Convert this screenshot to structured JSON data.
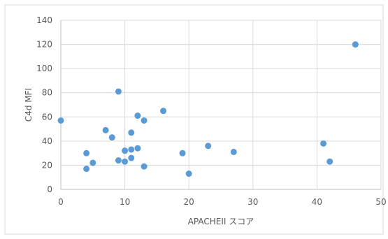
{
  "chart_data": {
    "type": "scatter",
    "title": "",
    "xlabel": "APACHEII スコア",
    "ylabel": "C4d MFI",
    "xlim": [
      0,
      50
    ],
    "ylim": [
      0,
      140
    ],
    "x_ticks": [
      0,
      10,
      20,
      30,
      40,
      50
    ],
    "y_ticks": [
      0,
      20,
      40,
      60,
      80,
      100,
      120,
      140
    ],
    "grid": true,
    "legend": "none",
    "point_color": "#5b9bd5",
    "series": [
      {
        "points": [
          {
            "x": 0,
            "y": 57
          },
          {
            "x": 4,
            "y": 30
          },
          {
            "x": 4,
            "y": 17
          },
          {
            "x": 5,
            "y": 22
          },
          {
            "x": 7,
            "y": 49
          },
          {
            "x": 8,
            "y": 43
          },
          {
            "x": 9,
            "y": 81
          },
          {
            "x": 9,
            "y": 24
          },
          {
            "x": 10,
            "y": 32
          },
          {
            "x": 10,
            "y": 23
          },
          {
            "x": 11,
            "y": 47
          },
          {
            "x": 11,
            "y": 33
          },
          {
            "x": 11,
            "y": 26
          },
          {
            "x": 12,
            "y": 61
          },
          {
            "x": 12,
            "y": 34
          },
          {
            "x": 13,
            "y": 57
          },
          {
            "x": 13,
            "y": 19
          },
          {
            "x": 16,
            "y": 65
          },
          {
            "x": 19,
            "y": 30
          },
          {
            "x": 20,
            "y": 13
          },
          {
            "x": 23,
            "y": 36
          },
          {
            "x": 27,
            "y": 31
          },
          {
            "x": 41,
            "y": 38
          },
          {
            "x": 42,
            "y": 23
          },
          {
            "x": 46,
            "y": 120
          }
        ]
      }
    ]
  }
}
